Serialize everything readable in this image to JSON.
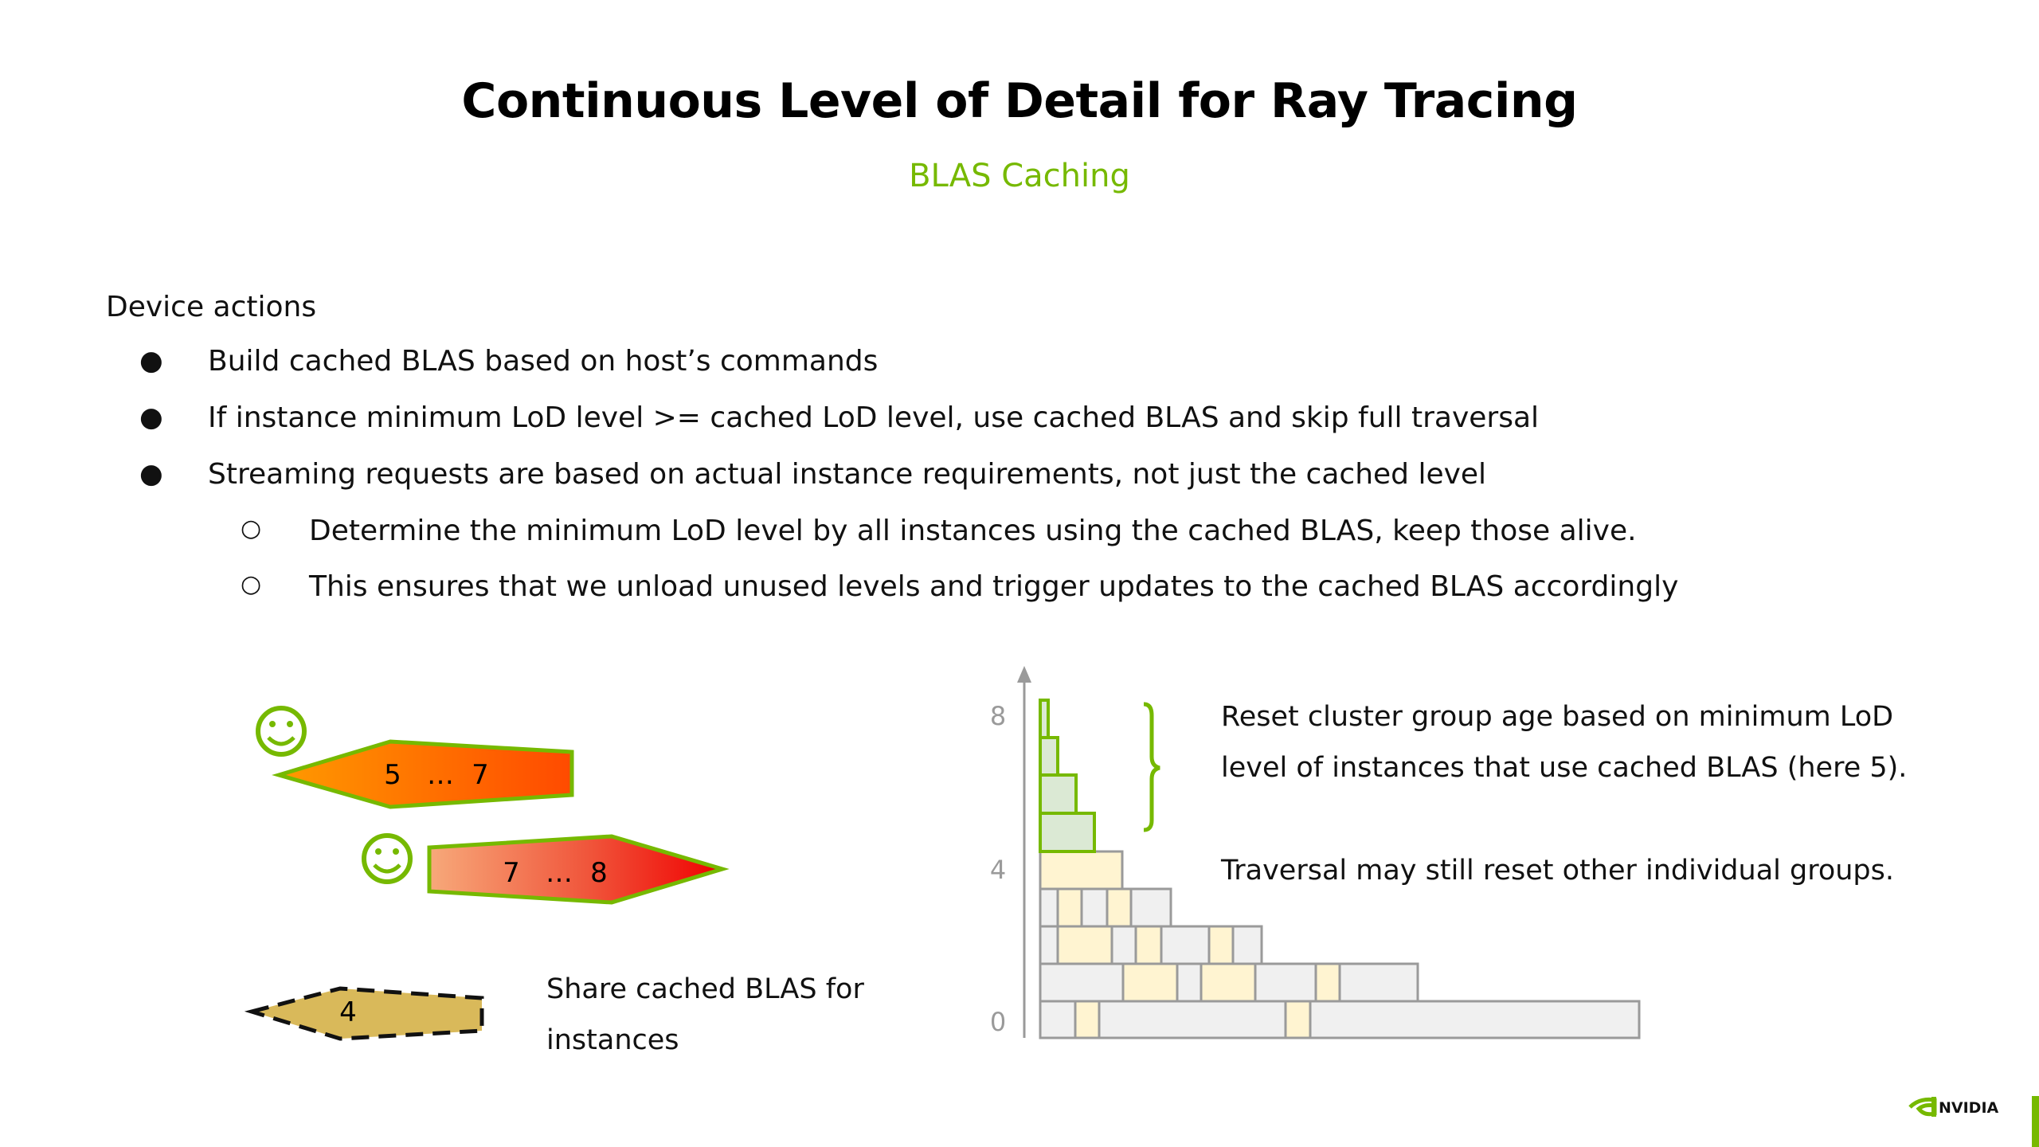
{
  "slide": {
    "title": "Continuous Level of Detail for Ray Tracing",
    "subtitle": "BLAS Caching",
    "section_heading": "Device actions",
    "bullets": [
      {
        "level": 1,
        "text": "Build cached BLAS based on host’s commands"
      },
      {
        "level": 1,
        "text": "If instance minimum LoD level >= cached LoD level, use cached BLAS and skip full traversal"
      },
      {
        "level": 1,
        "text": "Streaming requests are based on actual instance requirements, not just the cached level"
      },
      {
        "level": 2,
        "text": "Determine the minimum LoD level by all instances using the cached BLAS, keep those alive."
      },
      {
        "level": 2,
        "text": "This ensures that we unload unused levels and trigger updates to the cached BLAS accordingly"
      }
    ],
    "bullet_markers": {
      "level1": "●",
      "level2": "○"
    }
  },
  "instances": {
    "instance_a": {
      "from": "5",
      "ellipsis": "…",
      "to": "7"
    },
    "instance_b": {
      "from": "7",
      "ellipsis": "…",
      "to": "8"
    },
    "cached_blas": {
      "label": "4"
    },
    "share_note": "Share cached BLAS for instances",
    "smiley": "☺"
  },
  "lod_chart": {
    "tick_labels": [
      "8",
      "4",
      "0"
    ],
    "note_reset": "Reset cluster group age based on minimum LoD level of instances that use cached BLAS (here 5).",
    "note_reset_lines": [
      "Reset cluster group age based on minimum LoD",
      "level of instances that use cached BLAS (here 5)."
    ],
    "note_traversal": "Traversal may still reset other individual groups."
  },
  "brand": {
    "logo_text": "NVIDIA",
    "accent": "#76b900"
  },
  "colors": {
    "accent_green": "#76b900",
    "cached_fill": "#dbe9d4",
    "yellow_fill": "#fff4d1",
    "gray_fill": "#f0f0f0",
    "gray_stroke": "#9a9a9a",
    "dashed_fill": "#d9b95a"
  }
}
